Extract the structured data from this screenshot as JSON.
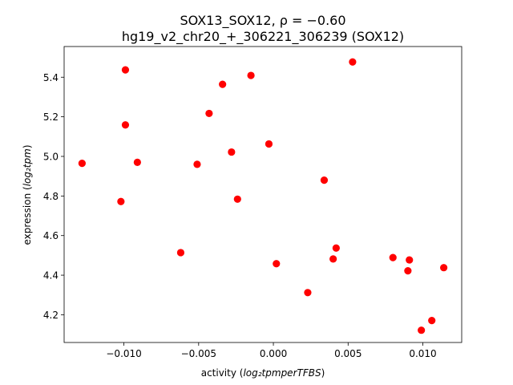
{
  "chart_data": {
    "type": "scatter",
    "title_line1": "SOX13_SOX12, ρ = −0.60",
    "title_line2": "hg19_v2_chr20_+_306221_306239 (SOX12)",
    "xlabel_plain": "activity (",
    "xlabel_math": "log₂tpmperTFBS",
    "xlabel_end": ")",
    "ylabel_plain": "expression (",
    "ylabel_math": "log₂tpm",
    "ylabel_end": ")",
    "xlim": [
      -0.014,
      0.0126
    ],
    "ylim": [
      4.06,
      5.555
    ],
    "xticks": [
      -0.01,
      -0.005,
      0.0,
      0.005,
      0.01
    ],
    "xtick_labels": [
      "−0.010",
      "−0.005",
      "0.000",
      "0.005",
      "0.010"
    ],
    "yticks": [
      4.2,
      4.4,
      4.6,
      4.8,
      5.0,
      5.2,
      5.4
    ],
    "ytick_labels": [
      "4.2",
      "4.4",
      "4.6",
      "4.8",
      "5.0",
      "5.2",
      "5.4"
    ],
    "point_color": "#ff0000",
    "points": [
      {
        "x": -0.0128,
        "y": 4.965
      },
      {
        "x": -0.0102,
        "y": 4.772
      },
      {
        "x": -0.0099,
        "y": 5.437
      },
      {
        "x": -0.0099,
        "y": 5.159
      },
      {
        "x": -0.0091,
        "y": 4.97
      },
      {
        "x": -0.0062,
        "y": 4.514
      },
      {
        "x": -0.0051,
        "y": 4.96
      },
      {
        "x": -0.0043,
        "y": 5.217
      },
      {
        "x": -0.0034,
        "y": 5.364
      },
      {
        "x": -0.0028,
        "y": 5.022
      },
      {
        "x": -0.0024,
        "y": 4.784
      },
      {
        "x": -0.0015,
        "y": 5.409
      },
      {
        "x": -0.0003,
        "y": 5.063
      },
      {
        "x": 0.0002,
        "y": 4.458
      },
      {
        "x": 0.0023,
        "y": 4.312
      },
      {
        "x": 0.0034,
        "y": 4.88
      },
      {
        "x": 0.004,
        "y": 4.482
      },
      {
        "x": 0.0042,
        "y": 4.537
      },
      {
        "x": 0.0053,
        "y": 5.477
      },
      {
        "x": 0.008,
        "y": 4.489
      },
      {
        "x": 0.009,
        "y": 4.422
      },
      {
        "x": 0.0091,
        "y": 4.477
      },
      {
        "x": 0.0099,
        "y": 4.122
      },
      {
        "x": 0.0106,
        "y": 4.171
      },
      {
        "x": 0.0114,
        "y": 4.438
      }
    ]
  }
}
